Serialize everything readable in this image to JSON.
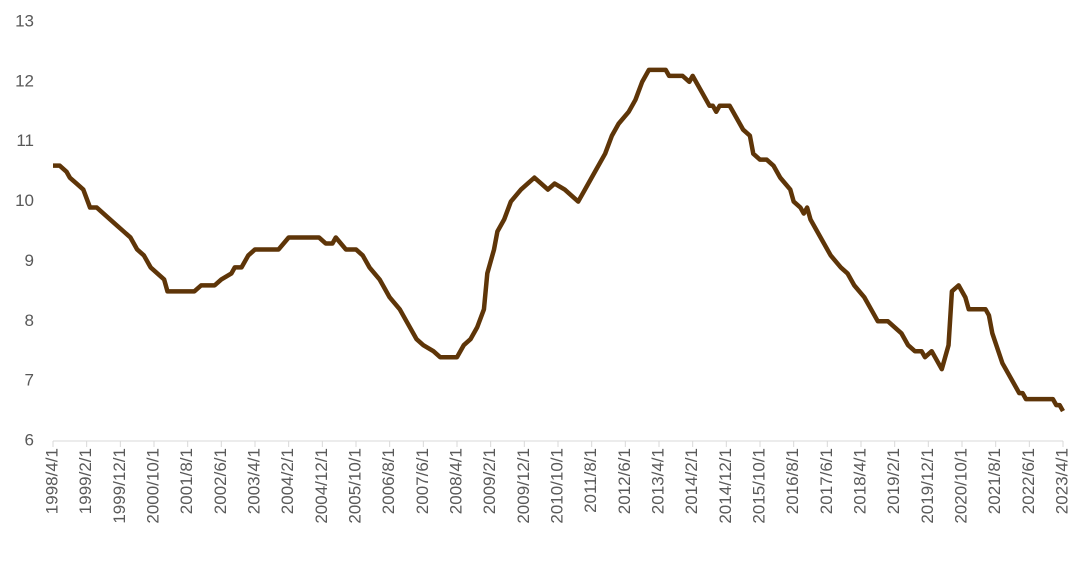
{
  "chart_data": {
    "type": "line",
    "x": [
      "1998/4/1",
      "1998/6/1",
      "1998/8/1",
      "1998/9/1",
      "1998/11/1",
      "1999/1/1",
      "1999/3/1",
      "1999/5/1",
      "1999/7/1",
      "1999/9/1",
      "1999/11/1",
      "2000/1/1",
      "2000/3/1",
      "2000/5/1",
      "2000/7/1",
      "2000/9/1",
      "2000/11/1",
      "2001/1/1",
      "2001/2/1",
      "2001/10/1",
      "2001/12/1",
      "2002/4/1",
      "2002/6/1",
      "2002/9/1",
      "2002/10/1",
      "2002/12/1",
      "2003/2/1",
      "2003/4/1",
      "2003/11/1",
      "2004/2/1",
      "2004/11/1",
      "2005/1/1",
      "2005/3/1",
      "2005/4/1",
      "2005/7/1",
      "2005/10/1",
      "2005/12/1",
      "2006/2/1",
      "2006/5/1",
      "2006/8/1",
      "2006/11/1",
      "2007/1/1",
      "2007/4/1",
      "2007/6/1",
      "2007/9/1",
      "2007/11/1",
      "2008/4/1",
      "2008/6/1",
      "2008/8/1",
      "2008/10/1",
      "2008/12/1",
      "2009/1/1",
      "2009/3/1",
      "2009/4/1",
      "2009/6/1",
      "2009/8/1",
      "2009/11/1",
      "2010/1/1",
      "2010/3/1",
      "2010/5/1",
      "2010/7/1",
      "2010/9/1",
      "2010/12/1",
      "2011/2/1",
      "2011/4/1",
      "2011/6/1",
      "2011/9/1",
      "2011/12/1",
      "2012/2/1",
      "2012/4/1",
      "2012/7/1",
      "2012/9/1",
      "2012/11/1",
      "2013/1/1",
      "2013/6/1",
      "2013/7/1",
      "2013/11/1",
      "2014/1/1",
      "2014/2/1",
      "2014/3/1",
      "2014/5/1",
      "2014/7/1",
      "2014/8/1",
      "2014/9/1",
      "2014/10/1",
      "2015/1/1",
      "2015/3/1",
      "2015/5/1",
      "2015/7/1",
      "2015/8/1",
      "2015/10/1",
      "2015/12/1",
      "2016/2/1",
      "2016/4/1",
      "2016/7/1",
      "2016/8/1",
      "2016/10/1",
      "2016/11/1",
      "2016/12/1",
      "2017/1/1",
      "2017/3/1",
      "2017/5/1",
      "2017/7/1",
      "2017/10/1",
      "2017/12/1",
      "2018/2/1",
      "2018/5/1",
      "2018/7/1",
      "2018/9/1",
      "2018/12/1",
      "2019/2/1",
      "2019/4/1",
      "2019/6/1",
      "2019/8/1",
      "2019/10/1",
      "2019/11/1",
      "2020/1/1",
      "2020/2/1",
      "2020/4/1",
      "2020/6/1",
      "2020/7/1",
      "2020/9/1",
      "2020/11/1",
      "2020/12/1",
      "2021/5/1",
      "2021/6/1",
      "2021/7/1",
      "2021/10/1",
      "2022/1/1",
      "2022/3/1",
      "2022/4/1",
      "2022/5/1",
      "2023/1/1",
      "2023/2/1",
      "2023/3/1",
      "2023/4/1"
    ],
    "series": [
      {
        "color": "#5e3508",
        "values": [
          10.6,
          10.6,
          10.5,
          10.4,
          10.3,
          10.2,
          9.9,
          9.9,
          9.8,
          9.7,
          9.6,
          9.5,
          9.4,
          9.2,
          9.1,
          8.9,
          8.8,
          8.7,
          8.5,
          8.5,
          8.6,
          8.6,
          8.7,
          8.8,
          8.9,
          8.9,
          9.1,
          9.2,
          9.2,
          9.4,
          9.4,
          9.3,
          9.3,
          9.4,
          9.2,
          9.2,
          9.1,
          8.9,
          8.7,
          8.4,
          8.2,
          8.0,
          7.7,
          7.6,
          7.5,
          7.4,
          7.4,
          7.6,
          7.7,
          7.9,
          8.2,
          8.8,
          9.2,
          9.5,
          9.7,
          10.0,
          10.2,
          10.3,
          10.4,
          10.3,
          10.2,
          10.3,
          10.2,
          10.1,
          10.0,
          10.2,
          10.5,
          10.8,
          11.1,
          11.3,
          11.5,
          11.7,
          12.0,
          12.2,
          12.2,
          12.1,
          12.1,
          12.0,
          12.1,
          12.0,
          11.8,
          11.6,
          11.6,
          11.5,
          11.6,
          11.6,
          11.4,
          11.2,
          11.1,
          10.8,
          10.7,
          10.7,
          10.6,
          10.4,
          10.2,
          10.0,
          9.9,
          9.8,
          9.9,
          9.7,
          9.5,
          9.3,
          9.1,
          8.9,
          8.8,
          8.6,
          8.4,
          8.2,
          8.0,
          8.0,
          7.9,
          7.8,
          7.6,
          7.5,
          7.5,
          7.4,
          7.5,
          7.4,
          7.2,
          7.6,
          8.5,
          8.6,
          8.4,
          8.2,
          8.2,
          8.1,
          7.8,
          7.3,
          7.0,
          6.8,
          6.8,
          6.7,
          6.7,
          6.6,
          6.6,
          6.5
        ]
      }
    ],
    "xlim": [
      "1998/4/1",
      "2023/4/1"
    ],
    "xticks": [
      "1998/4/1",
      "1999/2/1",
      "1999/12/1",
      "2000/10/1",
      "2001/8/1",
      "2002/6/1",
      "2003/4/1",
      "2004/2/1",
      "2004/12/1",
      "2005/10/1",
      "2006/8/1",
      "2007/6/1",
      "2008/4/1",
      "2009/2/1",
      "2009/12/1",
      "2010/10/1",
      "2011/8/1",
      "2012/6/1",
      "2013/4/1",
      "2014/2/1",
      "2014/12/1",
      "2015/10/1",
      "2016/8/1",
      "2017/6/1",
      "2018/4/1",
      "2019/2/1",
      "2019/12/1",
      "2020/10/1",
      "2021/8/1",
      "2022/6/1",
      "2023/4/1"
    ],
    "ylim": [
      6,
      13
    ],
    "yticks": [
      6,
      7,
      8,
      9,
      10,
      11,
      12,
      13
    ],
    "grid": false
  }
}
